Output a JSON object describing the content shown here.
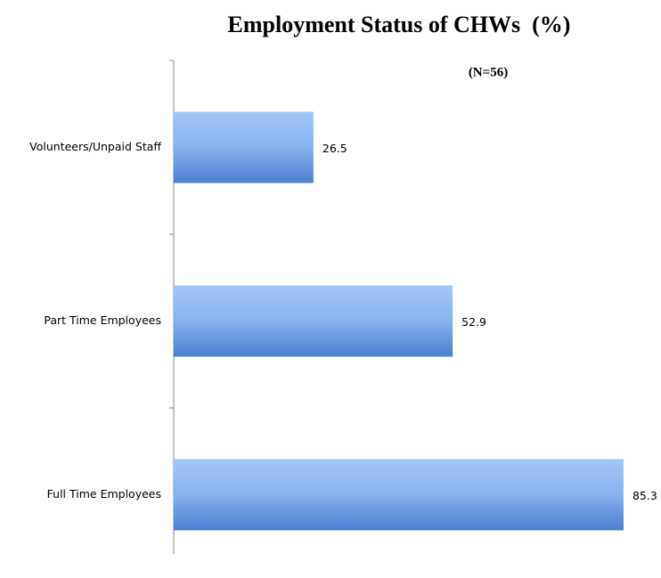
{
  "chart_data": {
    "type": "bar",
    "orientation": "horizontal",
    "title": "Employment Status of CHWs  (%)",
    "annotation": "(N=56)",
    "categories": [
      "Volunteers/Unpaid Staff",
      "Part Time Employees",
      "Full Time Employees"
    ],
    "values": [
      26.5,
      52.9,
      85.3
    ],
    "color": "#5b8fdc"
  }
}
